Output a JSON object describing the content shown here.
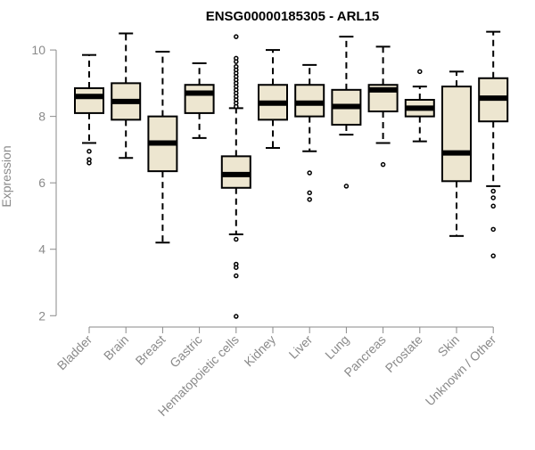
{
  "chart_data": {
    "type": "boxplot",
    "title": "ENSG00000185305 - ARL15",
    "xlabel": "",
    "ylabel": "Expression",
    "ylim": [
      1.9,
      10.7
    ],
    "yticks": [
      2,
      4,
      6,
      8,
      10
    ],
    "grid": false,
    "box_fill": "#ede6d0",
    "box_stroke": "#000000",
    "axis_color": "#8a8a8a",
    "categories": [
      "Bladder",
      "Brain",
      "Breast",
      "Gastric",
      "Hematopoietic cells",
      "Kidney",
      "Liver",
      "Lung",
      "Pancreas",
      "Prostate",
      "Skin",
      "Unknown / Other"
    ],
    "boxes": [
      {
        "category": "Bladder",
        "whisker_low": 7.2,
        "q1": 8.1,
        "median": 8.6,
        "q3": 8.85,
        "whisker_high": 9.85,
        "outliers": [
          6.95,
          6.7,
          6.6
        ]
      },
      {
        "category": "Brain",
        "whisker_low": 6.75,
        "q1": 7.9,
        "median": 8.45,
        "q3": 9.0,
        "whisker_high": 10.5,
        "outliers": []
      },
      {
        "category": "Breast",
        "whisker_low": 4.2,
        "q1": 6.35,
        "median": 7.2,
        "q3": 8.0,
        "whisker_high": 9.95,
        "outliers": []
      },
      {
        "category": "Gastric",
        "whisker_low": 7.35,
        "q1": 8.1,
        "median": 8.7,
        "q3": 8.95,
        "whisker_high": 9.6,
        "outliers": []
      },
      {
        "category": "Hematopoietic cells",
        "whisker_low": 4.45,
        "q1": 5.85,
        "median": 6.25,
        "q3": 6.8,
        "whisker_high": 8.25,
        "outliers": [
          10.4,
          9.75,
          9.65,
          9.5,
          9.4,
          9.3,
          9.2,
          9.1,
          9.0,
          8.9,
          8.8,
          8.7,
          8.6,
          8.5,
          8.4,
          8.3,
          4.3,
          3.55,
          3.45,
          3.2,
          1.98
        ]
      },
      {
        "category": "Kidney",
        "whisker_low": 7.05,
        "q1": 7.9,
        "median": 8.4,
        "q3": 8.95,
        "whisker_high": 10.0,
        "outliers": []
      },
      {
        "category": "Liver",
        "whisker_low": 6.95,
        "q1": 8.0,
        "median": 8.4,
        "q3": 8.95,
        "whisker_high": 9.55,
        "outliers": [
          6.3,
          5.7,
          5.5
        ]
      },
      {
        "category": "Lung",
        "whisker_low": 7.45,
        "q1": 7.75,
        "median": 8.3,
        "q3": 8.8,
        "whisker_high": 10.4,
        "outliers": [
          5.9
        ]
      },
      {
        "category": "Pancreas",
        "whisker_low": 7.2,
        "q1": 8.15,
        "median": 8.8,
        "q3": 8.95,
        "whisker_high": 10.1,
        "outliers": [
          6.55
        ]
      },
      {
        "category": "Prostate",
        "whisker_low": 7.25,
        "q1": 8.0,
        "median": 8.25,
        "q3": 8.5,
        "whisker_high": 8.9,
        "outliers": [
          9.35
        ]
      },
      {
        "category": "Skin",
        "whisker_low": 4.4,
        "q1": 6.05,
        "median": 6.9,
        "q3": 8.9,
        "whisker_high": 9.35,
        "outliers": []
      },
      {
        "category": "Unknown / Other",
        "whisker_low": 5.9,
        "q1": 7.85,
        "median": 8.55,
        "q3": 9.15,
        "whisker_high": 10.55,
        "outliers": [
          5.75,
          5.55,
          5.3,
          4.6,
          3.8
        ]
      }
    ]
  }
}
